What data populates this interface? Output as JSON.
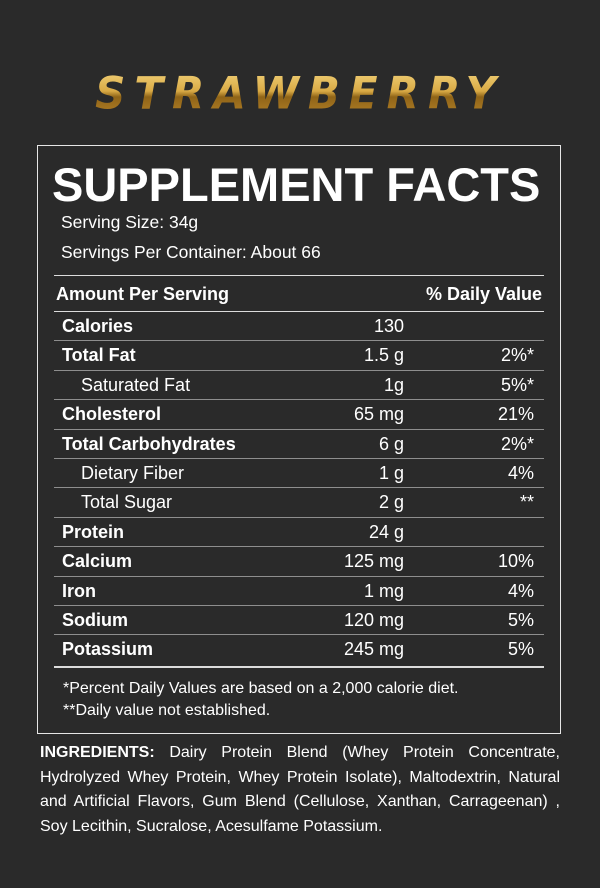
{
  "flavor": "STRAWBERRY",
  "facts": {
    "title": "SUPPLEMENT FACTS",
    "serving_size": "Serving Size: 34g",
    "servings_per_container": "Servings Per Container: About 66",
    "header_left": "Amount Per Serving",
    "header_right": "% Daily Value",
    "rows": [
      {
        "name": "Calories",
        "amount": "130",
        "dv": "",
        "style": "bold"
      },
      {
        "name": "Total Fat",
        "amount": "1.5 g",
        "dv": "2%*",
        "style": "bold"
      },
      {
        "name": "Saturated Fat",
        "amount": "1g",
        "dv": "5%*",
        "style": "sub"
      },
      {
        "name": "Cholesterol",
        "amount": "65 mg",
        "dv": "21%",
        "style": "bold"
      },
      {
        "name": "Total Carbohydrates",
        "amount": "6 g",
        "dv": "2%*",
        "style": "bold"
      },
      {
        "name": "Dietary Fiber",
        "amount": "1 g",
        "dv": "4%",
        "style": "sub"
      },
      {
        "name": "Total Sugar",
        "amount": "2 g",
        "dv": "**",
        "style": "sub"
      },
      {
        "name": "Protein",
        "amount": "24 g",
        "dv": "",
        "style": "bold"
      },
      {
        "name": "Calcium",
        "amount": "125 mg",
        "dv": "10%",
        "style": "bold"
      },
      {
        "name": "Iron",
        "amount": "1 mg",
        "dv": "4%",
        "style": "bold"
      },
      {
        "name": "Sodium",
        "amount": "120 mg",
        "dv": "5%",
        "style": "bold"
      },
      {
        "name": "Potassium",
        "amount": "245 mg",
        "dv": "5%",
        "style": "bold"
      }
    ],
    "footnote_1": "*Percent Daily Values are based on a 2,000 calorie diet.",
    "footnote_2": "**Daily value not established."
  },
  "ingredients": {
    "label": "INGREDIENTS:",
    "text": " Dairy Protein Blend (Whey Protein Concentrate, Hydrolyzed Whey Protein, Whey Protein Isolate), Maltodextrin, Natural and Artificial Flavors, Gum Blend (Cellulose, Xanthan, Carrageenan) , Soy Lecithin, Sucralose, Acesulfame Potassium."
  },
  "colors": {
    "background": "#2a2a2a",
    "text": "#ffffff",
    "flavor_gold": "#d9aa45",
    "panel_border": "#e6e6e6"
  }
}
